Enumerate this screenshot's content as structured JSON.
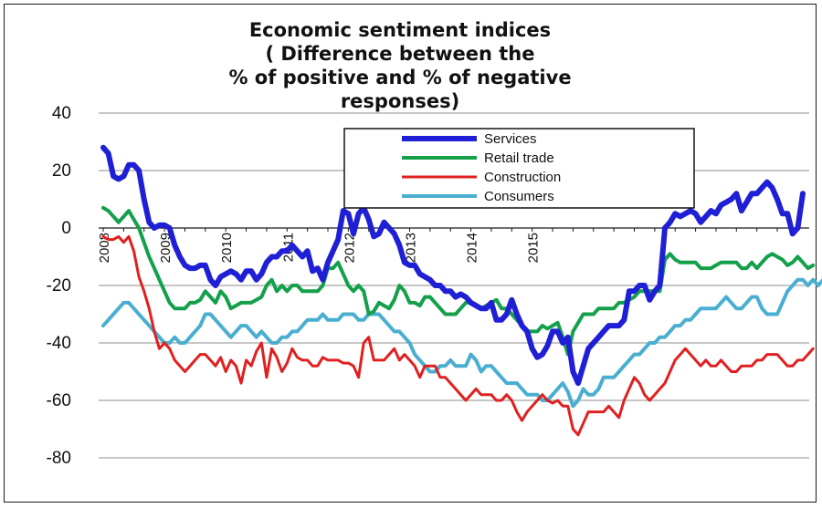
{
  "chart_data": {
    "type": "line",
    "title": [
      "Economic sentiment indices",
      "( Difference between the",
      "% of positive and  % of negative",
      "responses)"
    ],
    "ylim": [
      -80,
      40
    ],
    "y_ticks": [
      "40",
      "20",
      "0",
      "-20",
      "-40",
      "-60",
      "-80"
    ],
    "year_labels": [
      "2008",
      "2009",
      "2010",
      "2011",
      "2012",
      "2013",
      "2014",
      "2015"
    ],
    "x_start": 2008.0,
    "x_step_months": 1,
    "grid": true,
    "legend_position": "top-center",
    "series": [
      {
        "name": "Services",
        "color": "#1f1fd6",
        "width": 6,
        "values": [
          28,
          26,
          18,
          17,
          18,
          22,
          22,
          20,
          10,
          2,
          0,
          1,
          1,
          0,
          -6,
          -10,
          -13,
          -14,
          -14,
          -13,
          -13,
          -18,
          -20,
          -17,
          -16,
          -15,
          -16,
          -18,
          -15,
          -15,
          -18,
          -16,
          -12,
          -10,
          -10,
          -8,
          -8,
          -6,
          -8,
          -10,
          -8,
          -15,
          -14,
          -18,
          -12,
          -8,
          -4,
          6,
          5,
          -2,
          5,
          7,
          3,
          -3,
          -2,
          2,
          0,
          -2,
          -6,
          -12,
          -13,
          -13,
          -16,
          -17,
          -18,
          -20,
          -20,
          -22,
          -22,
          -24,
          -23,
          -24,
          -26,
          -27,
          -28,
          -28,
          -26,
          -32,
          -32,
          -30,
          -25,
          -30,
          -34,
          -36,
          -42,
          -45,
          -44,
          -41,
          -36,
          -36,
          -40,
          -38,
          -50,
          -54,
          -48,
          -42,
          -40,
          -38,
          -36,
          -34,
          -34,
          -34,
          -32,
          -22,
          -22,
          -20,
          -20,
          -25,
          -22,
          -20,
          0,
          2,
          5,
          4,
          5,
          6,
          5,
          2,
          4,
          6,
          5,
          8,
          9,
          10,
          12,
          6,
          9,
          12,
          12,
          14,
          16,
          14,
          10,
          5,
          5,
          -2,
          0,
          12
        ]
      },
      {
        "name": "Retail trade",
        "color": "#14a04a",
        "width": 4,
        "values": [
          7,
          6,
          4,
          2,
          4,
          6,
          3,
          0,
          -5,
          -10,
          -14,
          -18,
          -22,
          -26,
          -28,
          -28,
          -28,
          -26,
          -26,
          -25,
          -22,
          -24,
          -26,
          -22,
          -24,
          -28,
          -27,
          -26,
          -26,
          -26,
          -25,
          -24,
          -20,
          -18,
          -22,
          -20,
          -22,
          -20,
          -20,
          -22,
          -22,
          -22,
          -22,
          -20,
          -14,
          -14,
          -12,
          -16,
          -20,
          -22,
          -20,
          -22,
          -30,
          -29,
          -26,
          -27,
          -28,
          -25,
          -20,
          -22,
          -26,
          -26,
          -27,
          -24,
          -24,
          -26,
          -28,
          -30,
          -30,
          -30,
          -28,
          -26,
          -26,
          -27,
          -28,
          -27,
          -26,
          -25,
          -28,
          -28,
          -30,
          -32,
          -34,
          -36,
          -36,
          -36,
          -34,
          -35,
          -34,
          -33,
          -38,
          -44,
          -36,
          -33,
          -30,
          -30,
          -30,
          -28,
          -28,
          -28,
          -28,
          -26,
          -26,
          -25,
          -24,
          -22,
          -22,
          -22,
          -22,
          -22,
          -11,
          -9,
          -11,
          -12,
          -12,
          -12,
          -12,
          -14,
          -14,
          -14,
          -13,
          -12,
          -12,
          -12,
          -12,
          -14,
          -14,
          -12,
          -14,
          -12,
          -10,
          -9,
          -10,
          -11,
          -13,
          -12,
          -10,
          -12,
          -14,
          -13
        ]
      },
      {
        "name": "Construction",
        "color": "#e02020",
        "width": 3,
        "values": [
          -3,
          -4,
          -4,
          -3,
          -5,
          -3,
          -8,
          -17,
          -22,
          -28,
          -36,
          -42,
          -40,
          -42,
          -46,
          -48,
          -50,
          -48,
          -46,
          -44,
          -44,
          -46,
          -48,
          -45,
          -50,
          -46,
          -48,
          -54,
          -46,
          -48,
          -43,
          -40,
          -52,
          -42,
          -45,
          -50,
          -47,
          -42,
          -45,
          -46,
          -46,
          -48,
          -48,
          -45,
          -46,
          -46,
          -46,
          -47,
          -47,
          -48,
          -52,
          -40,
          -38,
          -46,
          -46,
          -46,
          -44,
          -42,
          -46,
          -44,
          -46,
          -48,
          -52,
          -48,
          -48,
          -48,
          -52,
          -52,
          -54,
          -56,
          -58,
          -60,
          -58,
          -56,
          -58,
          -58,
          -58,
          -60,
          -60,
          -58,
          -60,
          -64,
          -67,
          -64,
          -62,
          -60,
          -58,
          -60,
          -61,
          -60,
          -62,
          -62,
          -70,
          -72,
          -68,
          -64,
          -64,
          -64,
          -64,
          -62,
          -64,
          -66,
          -60,
          -56,
          -52,
          -54,
          -58,
          -60,
          -58,
          -56,
          -54,
          -50,
          -46,
          -44,
          -42,
          -44,
          -46,
          -48,
          -46,
          -48,
          -48,
          -46,
          -48,
          -50,
          -50,
          -48,
          -48,
          -48,
          -46,
          -46,
          -44,
          -44,
          -44,
          -46,
          -48,
          -48,
          -46,
          -46,
          -44,
          -42
        ]
      },
      {
        "name": "Consumers",
        "color": "#4aaed0",
        "width": 4,
        "values": [
          -34,
          -32,
          -30,
          -28,
          -26,
          -26,
          -28,
          -30,
          -32,
          -34,
          -36,
          -38,
          -40,
          -40,
          -38,
          -40,
          -40,
          -38,
          -36,
          -34,
          -30,
          -30,
          -32,
          -34,
          -36,
          -38,
          -36,
          -34,
          -34,
          -36,
          -38,
          -36,
          -38,
          -40,
          -40,
          -38,
          -38,
          -36,
          -36,
          -34,
          -32,
          -32,
          -32,
          -30,
          -32,
          -32,
          -32,
          -30,
          -30,
          -30,
          -32,
          -32,
          -30,
          -30,
          -30,
          -32,
          -34,
          -36,
          -36,
          -38,
          -40,
          -44,
          -46,
          -48,
          -50,
          -50,
          -48,
          -48,
          -46,
          -48,
          -48,
          -48,
          -44,
          -46,
          -50,
          -48,
          -48,
          -50,
          -52,
          -54,
          -54,
          -54,
          -56,
          -58,
          -58,
          -58,
          -60,
          -60,
          -58,
          -56,
          -54,
          -57,
          -62,
          -60,
          -56,
          -58,
          -58,
          -56,
          -52,
          -52,
          -52,
          -50,
          -48,
          -46,
          -44,
          -44,
          -42,
          -40,
          -40,
          -38,
          -38,
          -36,
          -34,
          -34,
          -32,
          -32,
          -30,
          -28,
          -28,
          -28,
          -28,
          -26,
          -24,
          -26,
          -28,
          -28,
          -26,
          -24,
          -24,
          -28,
          -30,
          -30,
          -30,
          -26,
          -22,
          -20,
          -18,
          -18,
          -20,
          -18,
          -20,
          -18
        ]
      }
    ]
  }
}
